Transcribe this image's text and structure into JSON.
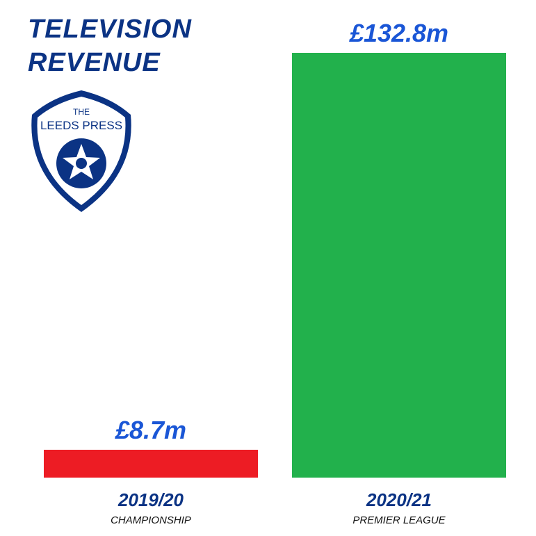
{
  "chart_data": {
    "type": "bar",
    "title": "TELEVISION REVENUE",
    "categories": [
      "2019/20",
      "2020/21"
    ],
    "category_subtitles": [
      "CHAMPIONSHIP",
      "PREMIER LEAGUE"
    ],
    "values": [
      8.7,
      132.8
    ],
    "value_labels": [
      "£8.7m",
      "£132.8m"
    ],
    "colors": [
      "#ed1c24",
      "#22b14c"
    ]
  },
  "logo": {
    "top": "THE",
    "name": "LEEDS PRESS"
  }
}
